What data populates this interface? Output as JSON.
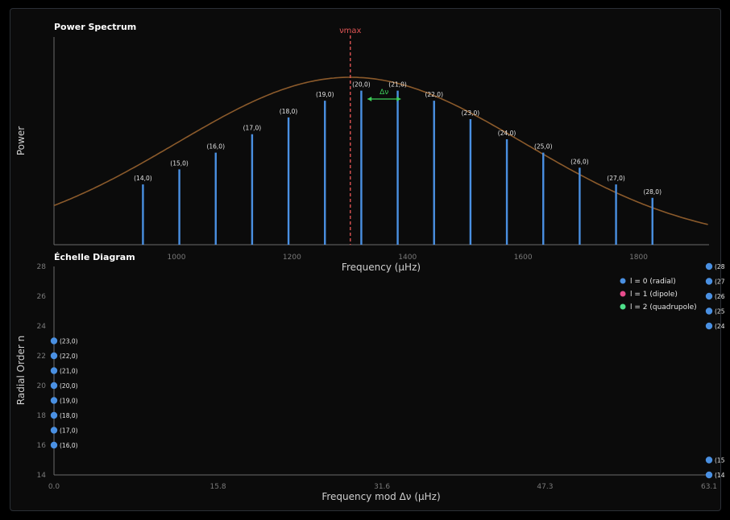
{
  "colors": {
    "background": "#0b0b0b",
    "axis": "#6b6b6b",
    "mode_line": "#4a90e2",
    "envelope": "#8b5a2b",
    "numax": "#e05555",
    "delta_nu": "#3ecf5a",
    "l0": "#4a90e2",
    "l1": "#e74c8c",
    "l2": "#4ee08a"
  },
  "chart_data": [
    {
      "type": "line",
      "title": "Power Spectrum",
      "xlabel": "Frequency (μHz)",
      "ylabel": "Power",
      "xlim": [
        788,
        1922
      ],
      "x_ticks": [
        "1000",
        "1200",
        "1400",
        "1600",
        "1800"
      ],
      "x_tick_values": [
        1000,
        1200,
        1400,
        1600,
        1800
      ],
      "grid": false,
      "numax": {
        "label": "νmax",
        "value": 1301
      },
      "delta_nu": {
        "label": "Δν",
        "from": 1328,
        "to": 1391
      },
      "envelope": {
        "center": 1301,
        "sigma": 301,
        "peak": 1.0
      },
      "modes": [
        {
          "label": "(14,0)",
          "freq": 942,
          "power": 0.36
        },
        {
          "label": "(15,0)",
          "freq": 1005,
          "power": 0.45
        },
        {
          "label": "(16,0)",
          "freq": 1068,
          "power": 0.55
        },
        {
          "label": "(17,0)",
          "freq": 1131,
          "power": 0.66
        },
        {
          "label": "(18,0)",
          "freq": 1194,
          "power": 0.76
        },
        {
          "label": "(19,0)",
          "freq": 1257,
          "power": 0.86
        },
        {
          "label": "(20,0)",
          "freq": 1320,
          "power": 0.92
        },
        {
          "label": "(21,0)",
          "freq": 1383,
          "power": 0.92
        },
        {
          "label": "(22,0)",
          "freq": 1446,
          "power": 0.86
        },
        {
          "label": "(23,0)",
          "freq": 1509,
          "power": 0.75
        },
        {
          "label": "(24,0)",
          "freq": 1572,
          "power": 0.63
        },
        {
          "label": "(25,0)",
          "freq": 1635,
          "power": 0.55
        },
        {
          "label": "(26,0)",
          "freq": 1698,
          "power": 0.46
        },
        {
          "label": "(27,0)",
          "freq": 1761,
          "power": 0.36
        },
        {
          "label": "(28,0)",
          "freq": 1824,
          "power": 0.28
        }
      ]
    },
    {
      "type": "scatter",
      "title": "Échelle Diagram",
      "xlabel": "Frequency mod Δν (μHz)",
      "ylabel": "Radial Order n",
      "xlim": [
        0,
        63.1
      ],
      "ylim": [
        14,
        28
      ],
      "x_ticks": [
        "0.0",
        "15.8",
        "31.6",
        "47.3",
        "63.1"
      ],
      "x_tick_values": [
        0,
        15.8,
        31.6,
        47.3,
        63.1
      ],
      "y_ticks": [
        "14",
        "16",
        "18",
        "20",
        "22",
        "24",
        "26",
        "28"
      ],
      "y_tick_values": [
        14,
        16,
        18,
        20,
        22,
        24,
        26,
        28
      ],
      "legend_position": "top-right",
      "legend": [
        {
          "label": "l = 0 (radial)",
          "color": "#4a90e2"
        },
        {
          "label": "l = 1 (dipole)",
          "color": "#e74c8c"
        },
        {
          "label": "l = 2 (quadrupole)",
          "color": "#4ee08a"
        }
      ],
      "points": [
        {
          "x": 0,
          "y": 16,
          "label": "(16,0)"
        },
        {
          "x": 0,
          "y": 17,
          "label": "(17,0)"
        },
        {
          "x": 0,
          "y": 18,
          "label": "(18,0)"
        },
        {
          "x": 0,
          "y": 19,
          "label": "(19,0)"
        },
        {
          "x": 0,
          "y": 20,
          "label": "(20,0)"
        },
        {
          "x": 0,
          "y": 21,
          "label": "(21,0)"
        },
        {
          "x": 0,
          "y": 22,
          "label": "(22,0)"
        },
        {
          "x": 0,
          "y": 23,
          "label": "(23,0)"
        },
        {
          "x": 63.1,
          "y": 14,
          "label": "(14"
        },
        {
          "x": 63.1,
          "y": 15,
          "label": "(15"
        },
        {
          "x": 63.1,
          "y": 24,
          "label": "(24"
        },
        {
          "x": 63.1,
          "y": 25,
          "label": "(25"
        },
        {
          "x": 63.1,
          "y": 26,
          "label": "(26"
        },
        {
          "x": 63.1,
          "y": 27,
          "label": "(27"
        },
        {
          "x": 63.1,
          "y": 28,
          "label": "(28"
        }
      ]
    }
  ]
}
